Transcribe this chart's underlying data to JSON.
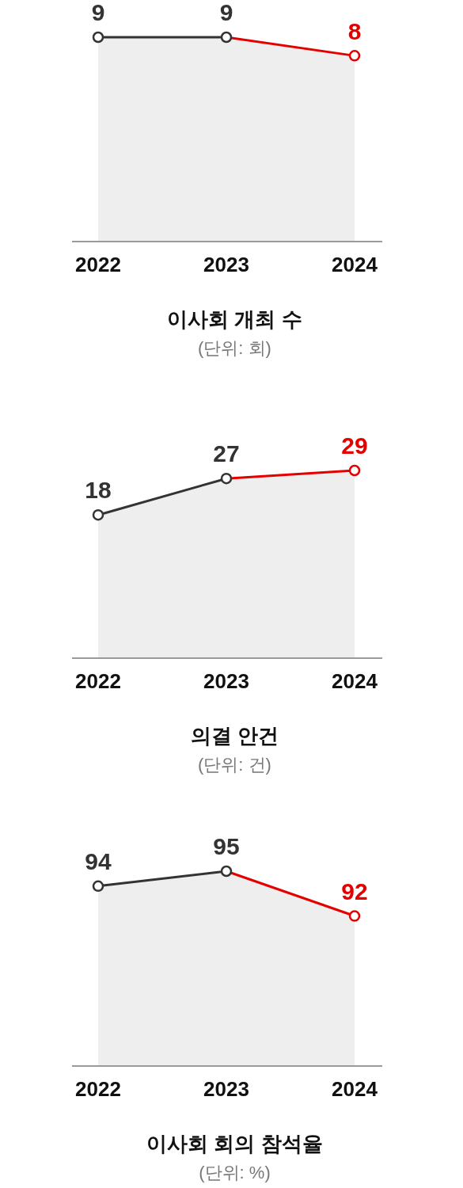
{
  "chart_data": [
    {
      "type": "area",
      "title": "이사회 개최 수",
      "subtitle": "(단위: 회)",
      "categories": [
        "2022",
        "2023",
        "2024"
      ],
      "values": [
        9,
        9,
        8
      ],
      "color": "#eeeeee",
      "colors": [
        "#333333",
        "#333333",
        "#e50000"
      ],
      "tick_labels": "x",
      "marker": "circle",
      "data_labels": true
    },
    {
      "type": "area",
      "title": "의결 안건",
      "subtitle": "(단위: 건)",
      "categories": [
        "2022",
        "2023",
        "2024"
      ],
      "values": [
        18,
        27,
        29
      ],
      "color": "#eeeeee",
      "colors": [
        "#333333",
        "#333333",
        "#e50000"
      ],
      "tick_labels": "x",
      "marker": "circle",
      "data_labels": true
    },
    {
      "type": "area",
      "title": "이사회 회의 참석율",
      "subtitle": "(단위: %)",
      "categories": [
        "2022",
        "2023",
        "2024"
      ],
      "values": [
        94,
        95,
        92
      ],
      "color": "#eeeeee",
      "colors": [
        "#333333",
        "#333333",
        "#e50000"
      ],
      "tick_labels": "x",
      "marker": "circle",
      "data_labels": true
    }
  ]
}
